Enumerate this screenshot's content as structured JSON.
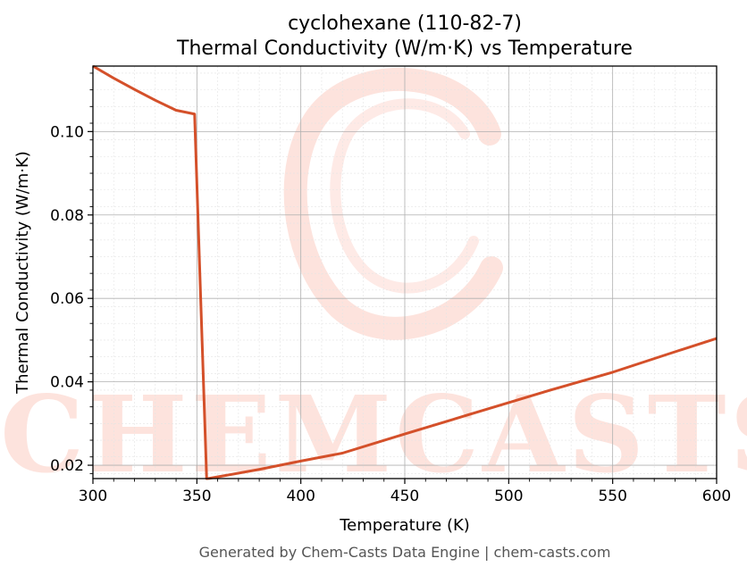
{
  "chart_data": {
    "type": "line",
    "title": "cyclohexane (110-82-7)",
    "subtitle": "Thermal Conductivity (W/m·K) vs Temperature",
    "xlabel": "Temperature (K)",
    "ylabel": "Thermal Conductivity (W/m·K)",
    "xlim": [
      300,
      600
    ],
    "ylim": [
      0.0168,
      0.1157
    ],
    "xticks": [
      300,
      350,
      400,
      450,
      500,
      550,
      600
    ],
    "xtick_labels": [
      "300",
      "350",
      "400",
      "450",
      "500",
      "550",
      "600"
    ],
    "yticks": [
      0.02,
      0.04,
      0.06,
      0.08,
      0.1
    ],
    "ytick_labels": [
      "0.02",
      "0.04",
      "0.06",
      "0.08",
      "0.10"
    ],
    "grid": true,
    "series": [
      {
        "color": "#d4502a",
        "x": [
          300,
          310,
          320,
          330,
          340,
          348.9,
          354.7,
          356,
          380,
          400,
          420,
          450,
          480,
          500,
          520,
          550,
          580,
          600
        ],
        "y": [
          0.1157,
          0.1128,
          0.1101,
          0.1075,
          0.1051,
          0.1042,
          0.0168,
          0.01685,
          0.019,
          0.021,
          0.0229,
          0.0275,
          0.032,
          0.035,
          0.038,
          0.0423,
          0.0472,
          0.0504
        ]
      }
    ]
  },
  "watermark": {
    "text": "CHEMCASTS",
    "color": "#fde3dd"
  },
  "footer": "Generated by Chem-Casts Data Engine | chem-casts.com"
}
